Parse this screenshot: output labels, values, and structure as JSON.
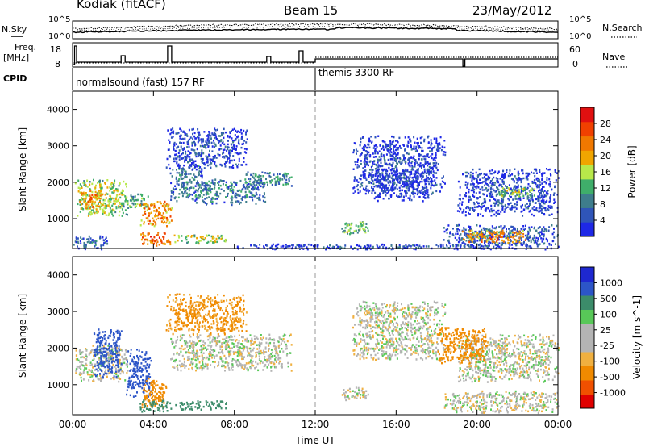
{
  "header": {
    "title": "Kodiak (fitACF)",
    "beam": "Beam 15",
    "date": "23/May/2012"
  },
  "top_panels": {
    "nsky_label": "N.Sky",
    "nsearch_label": "N.Search",
    "freq_label_1": "Freq.",
    "freq_label_2": "[MHz]",
    "nave_label": "Nave",
    "cpid_label": "CPID",
    "noise_ticks": [
      "10^5",
      "10^0"
    ],
    "freq_ticks": [
      "18",
      "8"
    ],
    "nave_ticks": [
      "60",
      "0"
    ],
    "cpid_segments": [
      {
        "start_hour": 0,
        "end_hour": 12,
        "label": "normalsound (fast) 157 RF"
      },
      {
        "start_hour": 12,
        "end_hour": 24,
        "label": "themis 3300 RF"
      }
    ]
  },
  "colors": {
    "axis": "#000000",
    "power_scale": [
      "#1e28e6",
      "#2f55b8",
      "#3e7d8c",
      "#3fae6a",
      "#b8e84a",
      "#f0a500",
      "#f07800",
      "#f04000",
      "#e01010"
    ],
    "velocity_scale": [
      "#e00000",
      "#f05000",
      "#f08a00",
      "#f0b040",
      "#b4b4b4",
      "#b4b4b4",
      "#58c858",
      "#3c8c6a",
      "#2c55c8",
      "#1e28d0"
    ]
  },
  "chart_data": [
    {
      "type": "heatmap",
      "name": "power",
      "xlabel": "",
      "ylabel": "Slant Range [km]",
      "xlim_hours": [
        0,
        24
      ],
      "ylim_km": [
        180,
        4500
      ],
      "yticks": [
        1000,
        2000,
        3000,
        4000
      ],
      "x_tick_hours": [
        0,
        4,
        8,
        12,
        16,
        20,
        24
      ],
      "grid": false,
      "colorbar": {
        "label": "Power [dB]",
        "range": [
          0,
          32
        ],
        "ticks": [
          4,
          8,
          12,
          16,
          20,
          24,
          28
        ]
      },
      "regions": [
        {
          "t": [
            0.1,
            2.7
          ],
          "r": [
            1100,
            2100
          ],
          "level": 18
        },
        {
          "t": [
            0.3,
            1.5
          ],
          "r": [
            1300,
            1800
          ],
          "level": 24
        },
        {
          "t": [
            2.3,
            3.7
          ],
          "r": [
            1300,
            1700
          ],
          "level": 14
        },
        {
          "t": [
            3.3,
            4.9
          ],
          "r": [
            800,
            1500
          ],
          "level": 24
        },
        {
          "t": [
            3.3,
            4.8
          ],
          "r": [
            280,
            650
          ],
          "level": 26
        },
        {
          "t": [
            5.0,
            7.6
          ],
          "r": [
            330,
            580
          ],
          "level": 18
        },
        {
          "t": [
            4.8,
            6.4
          ],
          "r": [
            1500,
            2500
          ],
          "level": 10
        },
        {
          "t": [
            6.0,
            9.5
          ],
          "r": [
            1400,
            2100
          ],
          "level": 10
        },
        {
          "t": [
            8.5,
            10.8
          ],
          "r": [
            1900,
            2300
          ],
          "level": 12
        },
        {
          "t": [
            4.6,
            8.6
          ],
          "r": [
            2400,
            3500
          ],
          "level": 6
        },
        {
          "t": [
            0.0,
            1.7
          ],
          "r": [
            180,
            550
          ],
          "level": 8
        },
        {
          "t": [
            13.2,
            14.6
          ],
          "r": [
            600,
            950
          ],
          "level": 16
        },
        {
          "t": [
            13.8,
            18.4
          ],
          "r": [
            1700,
            3300
          ],
          "level": 6
        },
        {
          "t": [
            14.8,
            17.8
          ],
          "r": [
            1500,
            2400
          ],
          "level": 5
        },
        {
          "t": [
            18.3,
            24.0
          ],
          "r": [
            250,
            850
          ],
          "level": 8
        },
        {
          "t": [
            19.2,
            22.4
          ],
          "r": [
            350,
            700
          ],
          "level": 24
        },
        {
          "t": [
            19.0,
            24.0
          ],
          "r": [
            1100,
            2400
          ],
          "level": 6
        },
        {
          "t": [
            21.0,
            22.8
          ],
          "r": [
            1600,
            1900
          ],
          "level": 16
        },
        {
          "t": [
            8.0,
            24.0
          ],
          "r": [
            180,
            320
          ],
          "level": 6
        }
      ]
    },
    {
      "type": "heatmap",
      "name": "velocity",
      "xlabel": "Time UT",
      "ylabel": "Slant Range [km]",
      "xlim_hours": [
        0,
        24
      ],
      "ylim_km": [
        180,
        4500
      ],
      "yticks": [
        1000,
        2000,
        3000,
        4000
      ],
      "x_tick_hours": [
        0,
        4,
        8,
        12,
        16,
        20,
        24
      ],
      "x_tick_labels": [
        "00:00",
        "04:00",
        "08:00",
        "12:00",
        "16:00",
        "20:00",
        "00:00"
      ],
      "grid": false,
      "colorbar": {
        "label": "Velocity [m s^-1]",
        "ticks": [
          "1000",
          "500",
          "100",
          "25",
          "-25",
          "-100",
          "-500",
          "-1000"
        ]
      },
      "regions": [
        {
          "t": [
            0.1,
            2.7
          ],
          "r": [
            1100,
            2100
          ],
          "vel": 0
        },
        {
          "t": [
            1.0,
            2.4
          ],
          "r": [
            1200,
            2600
          ],
          "vel": 800
        },
        {
          "t": [
            2.6,
            3.9
          ],
          "r": [
            700,
            2000
          ],
          "vel": 900
        },
        {
          "t": [
            3.4,
            4.6
          ],
          "r": [
            400,
            1200
          ],
          "vel": -300
        },
        {
          "t": [
            3.3,
            4.9
          ],
          "r": [
            280,
            600
          ],
          "vel": 150
        },
        {
          "t": [
            5.0,
            7.6
          ],
          "r": [
            330,
            580
          ],
          "vel": 200
        },
        {
          "t": [
            4.8,
            10.8
          ],
          "r": [
            1400,
            2400
          ],
          "vel": 0
        },
        {
          "t": [
            4.6,
            8.6
          ],
          "r": [
            2400,
            3500
          ],
          "vel": -120
        },
        {
          "t": [
            13.2,
            14.6
          ],
          "r": [
            600,
            950
          ],
          "vel": 0
        },
        {
          "t": [
            13.8,
            18.4
          ],
          "r": [
            1700,
            3300
          ],
          "vel": 0
        },
        {
          "t": [
            18.3,
            24.0
          ],
          "r": [
            250,
            850
          ],
          "vel": 0
        },
        {
          "t": [
            19.0,
            24.0
          ],
          "r": [
            1100,
            2400
          ],
          "vel": 0
        },
        {
          "t": [
            18.0,
            20.5
          ],
          "r": [
            1600,
            2600
          ],
          "vel": -400
        }
      ]
    }
  ]
}
